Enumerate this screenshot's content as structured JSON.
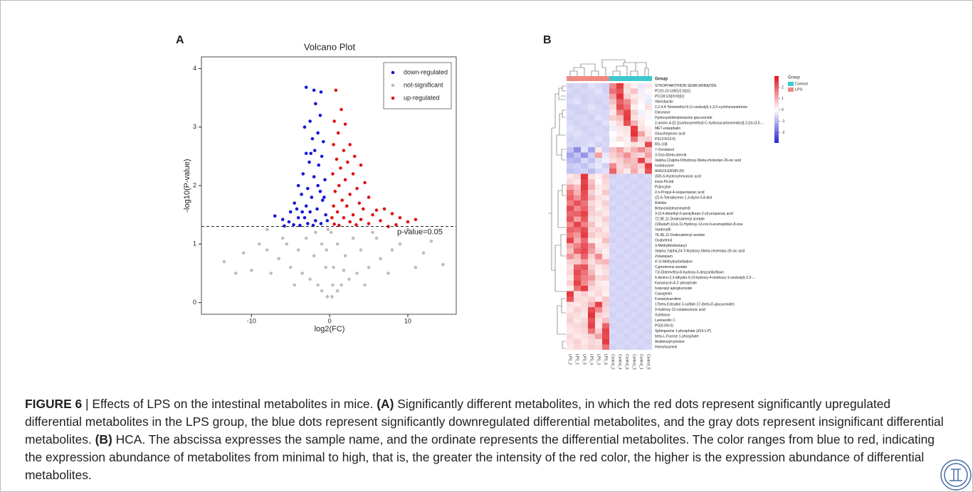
{
  "chart_data": [
    {
      "type": "scatter",
      "panel_label": "A",
      "title": "Volcano Plot",
      "xlabel": "log2(FC)",
      "ylabel": "-log10(P-value)",
      "xlim": [
        -16.4,
        16.2
      ],
      "ylim": [
        -0.2,
        4.2
      ],
      "xticks": [
        -10,
        0,
        10
      ],
      "yticks": [
        0,
        1,
        2,
        3,
        4
      ],
      "hline": 1.301,
      "annotation": "p-value=0.05",
      "legend": "top-right",
      "series": [
        {
          "name": "down-regulated",
          "color": "#1616d8",
          "x": [
            -3,
            -2,
            -1.1,
            -1.8,
            -2.5,
            -1.2,
            -3.2,
            -1.5,
            -2.2,
            -0.8,
            -1.9,
            -3,
            -1,
            -2.6,
            -1.4,
            -3.4,
            -2,
            -0.6,
            -4,
            -2.8,
            -1.2,
            -3.6,
            -2.3,
            -0.9,
            -4.5,
            -3,
            -1.6,
            -5,
            -2.5,
            -0.5,
            -4,
            -3.2,
            -1.8,
            -6,
            -5.2,
            -2.8,
            -1.1,
            -7,
            -4.6,
            -3.8,
            -0.3,
            -2.1,
            -5.8,
            -1.5,
            -2.4,
            -3.5,
            -4.2,
            -0.7
          ],
          "values": [
            3.68,
            3.63,
            3.6,
            3.4,
            3.1,
            3.2,
            3,
            2.9,
            2.8,
            2.75,
            2.6,
            2.55,
            2.5,
            2.4,
            2.35,
            2.2,
            2.15,
            2.1,
            2,
            1.95,
            1.9,
            1.85,
            1.8,
            1.75,
            1.7,
            1.65,
            1.6,
            1.55,
            1.55,
            1.5,
            1.45,
            1.45,
            1.4,
            1.42,
            1.38,
            1.35,
            1.35,
            1.48,
            1.33,
            1.32,
            1.4,
            1.32,
            1.31,
            2,
            2.55,
            1.55,
            1.6,
            1.8
          ]
        },
        {
          "name": "not-significant",
          "color": "#bdbdbd",
          "x": [
            -0.3,
            0.3,
            -1,
            1,
            -1.5,
            1.5,
            -2.5,
            2.5,
            -3.5,
            3.5,
            -5,
            5,
            -6.5,
            6.5,
            -8,
            8,
            -0.5,
            0.5,
            -1,
            1,
            -2,
            2,
            -3,
            3,
            -4,
            4,
            -6,
            6,
            -7.5,
            7.5,
            -9,
            9,
            -10,
            11,
            -11,
            12,
            -13.5,
            14.5,
            -8,
            10,
            -0.2,
            0.2,
            -0.4,
            0.4,
            -1.8,
            1.8,
            -4.5,
            4.5,
            -12,
            13,
            -5.5,
            5.5
          ],
          "values": [
            0.1,
            0.1,
            0.2,
            0.2,
            0.3,
            0.3,
            0.4,
            0.4,
            0.5,
            0.5,
            0.6,
            0.6,
            0.75,
            0.75,
            0.9,
            0.9,
            0.6,
            0.6,
            1,
            1,
            0.8,
            0.8,
            1.1,
            1.1,
            0.9,
            0.9,
            1.1,
            1.1,
            0.5,
            0.5,
            1,
            1,
            0.55,
            0.6,
            0.85,
            0.85,
            0.7,
            0.65,
            1.25,
            1.25,
            1.25,
            1.2,
            0.9,
            0.3,
            1.2,
            0.55,
            0.3,
            0.3,
            0.5,
            1.05,
            1,
            1.2
          ]
        },
        {
          "name": "up-regulated",
          "color": "#e01414",
          "x": [
            0.8,
            1.5,
            0.6,
            2,
            1.1,
            2.6,
            0.5,
            1.8,
            3.2,
            0.9,
            2.3,
            4,
            1.4,
            3,
            0.4,
            2,
            4.5,
            1.2,
            3.5,
            0.7,
            2.6,
            5,
            1.6,
            3.8,
            0.5,
            2.2,
            4.3,
            6,
            1,
            3,
            7,
            5.5,
            1.8,
            0.3,
            4,
            2.6,
            8,
            6.5,
            9,
            10,
            11,
            3.4,
            1.2,
            5,
            8.5,
            0.6,
            7.5
          ],
          "values": [
            3.63,
            3.3,
            3.1,
            3.05,
            2.9,
            2.7,
            2.7,
            2.6,
            2.5,
            2.45,
            2.4,
            2.35,
            2.3,
            2.2,
            2.2,
            2.1,
            2.05,
            2,
            1.95,
            1.9,
            1.85,
            1.8,
            1.75,
            1.7,
            1.65,
            1.65,
            1.6,
            1.58,
            1.55,
            1.5,
            1.6,
            1.5,
            1.45,
            1.45,
            1.42,
            1.38,
            1.52,
            1.4,
            1.45,
            1.38,
            1.42,
            1.33,
            1.32,
            1.35,
            1.33,
            1.34,
            1.3
          ]
        }
      ]
    },
    {
      "type": "heatmap",
      "panel_label": "B",
      "legend_title": "Group",
      "groups": [
        {
          "name": "Control",
          "color": "#3fc9cc"
        },
        {
          "name": "LPS",
          "color": "#f08a80"
        }
      ],
      "column_group": [
        1,
        1,
        1,
        1,
        1,
        1,
        0,
        0,
        0,
        0,
        0,
        0
      ],
      "x": [
        "LPS_2",
        "LPS_1",
        "LPS_5",
        "LPS_4",
        "LPS_3",
        "LPS_6",
        "Control_2",
        "Control_4",
        "Control_6",
        "Control_3",
        "Control_1",
        "Control_5"
      ],
      "y": [
        "STROPHANTHIDIN SEMICARBAZIDE",
        "PC(O-16:1(9E)/2:0)[U]",
        "PC(18:1(9)/0:0)[U]",
        "Vibriobactin",
        "2,2,4,4-Tetramethyl-6-(1-oxobutyl)-1,3,5-cyclohexanetrione",
        "Darunavir",
        "Hydroxyetilstrabenazine glucuronide",
        "2-amino-4-([1-[(carboxymethyl)-C-hydroxycarbonimidoyl]-2-[(4-(3,5-...",
        "MET-enkephalin",
        "Glucoheptonic acid",
        "PI(13:0/13:0)",
        "RG-108",
        "7-Oxostanol",
        "3-Oxo-5beta-steroid",
        "3alpha,12alpha-Dihydroxy-5beta-cholestan-26-oic acid",
        "Isolobusone",
        "ANGOLENSIN (R)",
        "(5R)-5-Hydroxyhexanoic acid",
        "trans-Piceid",
        "Psilocybin",
        "2-n-Propyl-4-oxopentanoic acid",
        "(Z)-6-Tetradecene-1,3-diyne-5,8-diol",
        "Rishitin",
        "Betaxolol(deaminated)",
        "3-(3,4-dimethyl-5-pentylfuran-2-yl)-propanoic acid",
        "7Z,9E,11-Dodecatrienyl acetate",
        "(10betaH,11xi)-11-Hydroxy-13-nor-6-eremophilen-8-one",
        "Vardenafil",
        "7E,9E,11-Dodecatrienyl acetate",
        "Oxabetrinil",
        "3-Methylthiofentanyl",
        "3alpha,7alpha,24-Trihydroxy-5beta-cholestan-26-oic acid",
        "Zolazepam",
        "4'-O-Methylnorbelladine",
        "Cyproterone acetate",
        "7,8-Didemethyl-8-hydroxy-5-deazariboflavin",
        "5-Amino-2,3-dihydro-6-(3-hydroxy-4-methoxy-1-oxobutyl)-2,3-...",
        "Kanamycin A 3'-phosphate",
        "Isopropyl apioglucoside",
        "Copagenin",
        "Fumarylcarnitine",
        "17beta-Estradiol 3-sulfate-17-(beta-D-glucuronide)",
        "9-hydroxy-12-octadecenoic acid",
        "Xylobiose",
        "Lankacidin C",
        "PG(6:0/6:0)",
        "Sphingosine 1-phosphate (d19:1-P)",
        "beta-L-Fucose 1-phosphate",
        "Arabinosylcytosine",
        "Homofuraneol"
      ],
      "values": [
        [
          -0.6,
          -0.5,
          -0.6,
          -0.4,
          -0.5,
          -0.6,
          1.5,
          2.5,
          0.5,
          0.2,
          -0.3,
          0.3
        ],
        [
          -0.5,
          -0.6,
          -0.5,
          -0.5,
          -0.4,
          -0.6,
          1.8,
          2.2,
          0.4,
          0.8,
          -0.2,
          0.1
        ],
        [
          -0.6,
          -0.5,
          -0.6,
          -0.5,
          -0.5,
          -0.5,
          1.2,
          2.6,
          0.6,
          0.3,
          0.2,
          -0.2
        ],
        [
          -0.5,
          -0.4,
          -0.6,
          -0.5,
          -0.6,
          -0.5,
          0.8,
          2,
          1.5,
          0.5,
          0.1,
          -0.3
        ],
        [
          -0.6,
          -0.6,
          -0.5,
          -0.4,
          -0.5,
          -0.6,
          0.5,
          2.3,
          1.8,
          0.2,
          0,
          0.4
        ],
        [
          -0.5,
          -0.6,
          -0.6,
          -0.5,
          -0.5,
          -0.5,
          0.3,
          1.6,
          2.4,
          0.6,
          -0.2,
          0.1
        ],
        [
          -0.6,
          -0.5,
          -0.5,
          -0.6,
          -0.4,
          -0.5,
          0.6,
          0.8,
          2.5,
          0.4,
          0.2,
          -0.1
        ],
        [
          -0.5,
          -0.6,
          -0.5,
          -0.5,
          -0.6,
          -0.4,
          0.2,
          0.5,
          2.2,
          1,
          0.3,
          0
        ],
        [
          -0.4,
          -0.5,
          -0.6,
          -0.5,
          -0.5,
          -0.6,
          -0.2,
          0.3,
          0.4,
          2.5,
          0.4,
          0.2
        ],
        [
          -0.5,
          -0.4,
          -0.5,
          -0.6,
          -0.5,
          -0.5,
          0,
          0.2,
          0.3,
          2.6,
          1.2,
          0.3
        ],
        [
          -0.6,
          -0.5,
          -0.5,
          -0.5,
          -0.4,
          -0.6,
          -0.1,
          0.4,
          0.2,
          1.8,
          0.5,
          0.6
        ],
        [
          -0.5,
          -0.6,
          -0.5,
          -0.4,
          -0.6,
          -0.5,
          0.1,
          0,
          0.2,
          0.4,
          0.3,
          2.3
        ],
        [
          -0.8,
          -1.5,
          -0.4,
          -1.2,
          0.3,
          -0.6,
          0.8,
          1.2,
          0.5,
          1,
          1.5,
          0.9
        ],
        [
          -1.2,
          -0.8,
          -1.4,
          -0.6,
          1.2,
          -0.3,
          0.6,
          0.9,
          1.4,
          0.7,
          0.5,
          1.2
        ],
        [
          -0.9,
          -1,
          -0.5,
          -0.8,
          -0.4,
          -0.2,
          0.4,
          0.6,
          1,
          0.8,
          2.4,
          0.7
        ],
        [
          -0.7,
          -0.6,
          -0.8,
          -0.5,
          -0.3,
          -0.6,
          1.5,
          0.5,
          0.7,
          0.9,
          0.6,
          2.5
        ],
        [
          -0.8,
          -0.7,
          -0.6,
          -0.9,
          -0.5,
          -0.4,
          2,
          0.6,
          0.3,
          1.1,
          0.4,
          2.2
        ],
        [
          0.3,
          0.5,
          2.6,
          0.4,
          0.2,
          0.6,
          -0.6,
          -0.5,
          -0.6,
          -0.5,
          -0.6,
          -0.5
        ],
        [
          0.5,
          0.3,
          2.4,
          0.8,
          0.1,
          0.5,
          -0.5,
          -0.6,
          -0.5,
          -0.6,
          -0.5,
          -0.6
        ],
        [
          1.2,
          0.8,
          2.5,
          1,
          0.3,
          0.4,
          -0.6,
          -0.5,
          -0.6,
          -0.5,
          -0.6,
          -0.5
        ],
        [
          1.8,
          1,
          2.3,
          0.6,
          0.2,
          0.7,
          -0.5,
          -0.6,
          -0.5,
          -0.6,
          -0.5,
          -0.6
        ],
        [
          2,
          1.4,
          2.2,
          0.9,
          0.4,
          0.3,
          -0.6,
          -0.5,
          -0.6,
          -0.5,
          -0.6,
          -0.5
        ],
        [
          1.6,
          2.2,
          1.8,
          0.5,
          0.3,
          0.6,
          -0.5,
          -0.6,
          -0.5,
          -0.6,
          -0.5,
          -0.6
        ],
        [
          2.3,
          1.5,
          2,
          0.7,
          0.2,
          0.4,
          -0.6,
          -0.5,
          -0.6,
          -0.5,
          -0.6,
          -0.5
        ],
        [
          1.9,
          2,
          2.4,
          0.6,
          0.5,
          0.3,
          -0.5,
          -0.6,
          -0.5,
          -0.6,
          -0.5,
          -0.6
        ],
        [
          2.2,
          1.2,
          2.1,
          0.4,
          0.3,
          0.6,
          -0.6,
          -0.5,
          -0.6,
          -0.5,
          -0.6,
          -0.5
        ],
        [
          1.5,
          2.4,
          1.6,
          0.8,
          0.2,
          0.4,
          -0.5,
          -0.6,
          -0.5,
          -0.6,
          -0.5,
          -0.6
        ],
        [
          2,
          1.8,
          2.3,
          0.5,
          0.6,
          0.3,
          -0.6,
          -0.5,
          -0.6,
          -0.5,
          -0.6,
          -0.5
        ],
        [
          1.7,
          1.3,
          2.5,
          0.7,
          0.4,
          0.5,
          -0.5,
          -0.6,
          -0.5,
          -0.6,
          -0.5,
          -0.6
        ],
        [
          2.4,
          1,
          1.9,
          0.3,
          0.2,
          0.8,
          -0.6,
          -0.5,
          -0.6,
          -0.5,
          -0.6,
          -0.5
        ],
        [
          1.1,
          1.6,
          2.2,
          1.4,
          0.3,
          0.4,
          -0.5,
          -0.6,
          -0.5,
          -0.6,
          -0.5,
          -0.6
        ],
        [
          0.8,
          2,
          2.3,
          1.2,
          0.5,
          0.2,
          -0.6,
          -0.5,
          -0.6,
          -0.5,
          -0.6,
          -0.5
        ],
        [
          1.4,
          0.9,
          2,
          0.6,
          1.5,
          0.3,
          -0.5,
          -0.6,
          -0.5,
          -0.6,
          -0.5,
          -0.6
        ],
        [
          0.6,
          0.7,
          1.2,
          0.4,
          0.8,
          0.9,
          -0.6,
          -0.5,
          -0.6,
          -0.5,
          -0.6,
          -0.5
        ],
        [
          0.4,
          2,
          2.2,
          0.6,
          0.3,
          0.5,
          -0.5,
          -0.6,
          -0.5,
          -0.6,
          -0.5,
          -0.6
        ],
        [
          0.5,
          2.3,
          1.8,
          0.9,
          0.2,
          0.4,
          -0.6,
          -0.5,
          -0.6,
          -0.5,
          -0.6,
          -0.5
        ],
        [
          0.3,
          2.1,
          1.6,
          1.3,
          0.5,
          0.6,
          -0.5,
          -0.6,
          -0.5,
          -0.6,
          -0.5,
          -0.6
        ],
        [
          0.6,
          2.4,
          1.5,
          0.8,
          0.3,
          0.2,
          -0.6,
          -0.5,
          -0.6,
          -0.5,
          -0.6,
          -0.5
        ],
        [
          0.2,
          1.8,
          2.5,
          0.5,
          0.4,
          0.3,
          -0.5,
          -0.6,
          -0.5,
          -0.6,
          -0.5,
          -0.6
        ],
        [
          2.5,
          0.4,
          0.6,
          0.3,
          0.5,
          0.2,
          -0.6,
          -0.5,
          -0.6,
          -0.5,
          -0.6,
          -0.5
        ],
        [
          2.2,
          0.5,
          0.4,
          0.6,
          0.3,
          0.7,
          -0.5,
          -0.6,
          -0.5,
          -0.6,
          -0.5,
          -0.6
        ],
        [
          0.4,
          0.3,
          0.5,
          1,
          2.4,
          0.6,
          -0.6,
          -0.5,
          -0.6,
          -0.5,
          -0.6,
          -0.5
        ],
        [
          0.3,
          0.6,
          0.4,
          2.3,
          1.5,
          0.5,
          -0.5,
          -0.6,
          -0.5,
          -0.6,
          -0.5,
          -0.6
        ],
        [
          0.5,
          0.4,
          0.3,
          2.6,
          0.6,
          0.4,
          -0.6,
          -0.5,
          -0.6,
          -0.5,
          -0.6,
          -0.5
        ],
        [
          0.6,
          0.3,
          0.5,
          2.2,
          0.4,
          0.8,
          -0.5,
          -0.6,
          -0.5,
          -0.6,
          -0.5,
          -0.6
        ],
        [
          0.4,
          0.5,
          0.6,
          2.4,
          0.3,
          2,
          -0.6,
          -0.5,
          -0.6,
          -0.5,
          -0.6,
          -0.5
        ],
        [
          0.3,
          0.4,
          0.5,
          1.8,
          0.6,
          2.4,
          -0.5,
          -0.6,
          -0.5,
          -0.6,
          -0.5,
          -0.6
        ],
        [
          0.5,
          0.3,
          0.4,
          0.6,
          1.2,
          2.3,
          -0.6,
          -0.5,
          -0.6,
          -0.5,
          -0.6,
          -0.5
        ],
        [
          0.4,
          0.6,
          0.3,
          0.5,
          0.4,
          2.5,
          -0.5,
          -0.6,
          -0.5,
          -0.6,
          -0.5,
          -0.6
        ],
        [
          0.3,
          0.5,
          0.4,
          0.6,
          0.5,
          1.8,
          -0.6,
          -0.5,
          -0.6,
          -0.5,
          -0.6,
          -0.5
        ]
      ],
      "clim": [
        -2.9,
        3.0
      ],
      "cticks": [
        -2,
        -1,
        0,
        1,
        2
      ],
      "low_color": "#2424d0",
      "high_color": "#e0141c"
    }
  ],
  "caption": [
    "FIGURE 6",
    " | Effects of LPS on the intestinal metabolites in mice. ",
    "(A)",
    " Significantly different metabolites, in which the red dots represent significantly upregulated differential metabolites in the LPS group, the blue dots represent significantly downregulated differential metabolites, and the gray dots represent insignificant differential metabolites. ",
    "(B)",
    " HCA. The abscissa expresses the sample name, and the ordinate represents the differential metabolites. The color ranges from blue to red, indicating the expression abundance of metabolites from minimal to high, that is, the greater the intensity of the red color, the higher is the expression abundance of differential metabolites."
  ]
}
